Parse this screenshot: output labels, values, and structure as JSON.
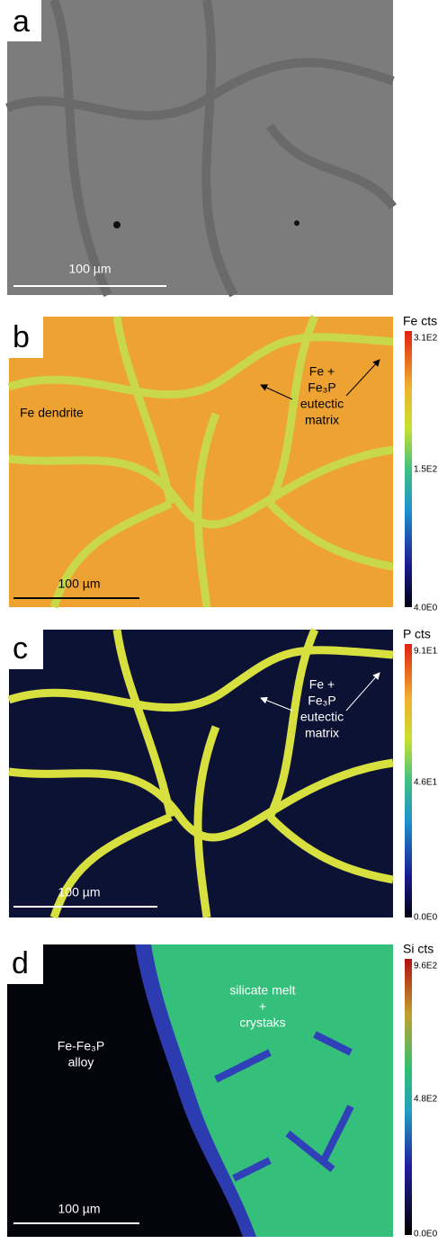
{
  "panels": [
    {
      "label": "a",
      "scale_bar": "100 µm"
    },
    {
      "label": "b",
      "scale_bar": "100 µm",
      "colorbar_title": "Fe cts",
      "colorbar_ticks": [
        "3.1E2",
        "1.5E2",
        "4.0E0"
      ],
      "annotations": [
        {
          "lines": [
            "Fe dendrite"
          ]
        },
        {
          "lines": [
            "Fe +",
            "Fe₃P",
            "eutectic",
            "matrix"
          ]
        }
      ]
    },
    {
      "label": "c",
      "scale_bar": "100 µm",
      "colorbar_title": "P cts",
      "colorbar_ticks": [
        "9.1E1",
        "4.6E1",
        "0.0E0"
      ],
      "annotations": [
        {
          "lines": [
            "Fe +",
            "Fe₃P",
            "eutectic",
            "matrix"
          ]
        }
      ]
    },
    {
      "label": "d",
      "scale_bar": "100 µm",
      "colorbar_title": "Si cts",
      "colorbar_ticks": [
        "9.6E2",
        "4.8E2",
        "0.0E0"
      ],
      "annotations": [
        {
          "lines": [
            "silicate melt",
            "+",
            "crystaks"
          ]
        },
        {
          "lines": [
            "Fe-Fe₃P",
            "alloy"
          ]
        }
      ]
    }
  ]
}
